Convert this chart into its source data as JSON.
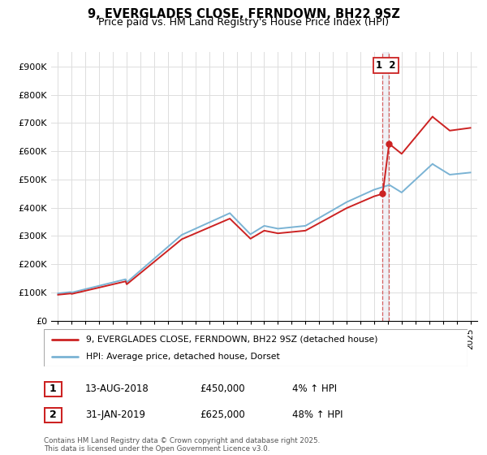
{
  "title": "9, EVERGLADES CLOSE, FERNDOWN, BH22 9SZ",
  "subtitle": "Price paid vs. HM Land Registry's House Price Index (HPI)",
  "ylim": [
    0,
    950000
  ],
  "yticks": [
    0,
    100000,
    200000,
    300000,
    400000,
    500000,
    600000,
    700000,
    800000,
    900000
  ],
  "ytick_labels": [
    "£0",
    "£100K",
    "£200K",
    "£300K",
    "£400K",
    "£500K",
    "£600K",
    "£700K",
    "£800K",
    "£900K"
  ],
  "xlim_left": 1994.5,
  "xlim_right": 2025.5,
  "hpi_color": "#7ab3d4",
  "price_color": "#cc2222",
  "transaction1_date": 2018.62,
  "transaction1_price": 450000,
  "transaction2_date": 2019.08,
  "transaction2_price": 625000,
  "legend_line1": "9, EVERGLADES CLOSE, FERNDOWN, BH22 9SZ (detached house)",
  "legend_line2": "HPI: Average price, detached house, Dorset",
  "table_row1": [
    "1",
    "13-AUG-2018",
    "£450,000",
    "4% ↑ HPI"
  ],
  "table_row2": [
    "2",
    "31-JAN-2019",
    "£625,000",
    "48% ↑ HPI"
  ],
  "footnote": "Contains HM Land Registry data © Crown copyright and database right 2025.\nThis data is licensed under the Open Government Licence v3.0.",
  "grid_color": "#dddddd"
}
